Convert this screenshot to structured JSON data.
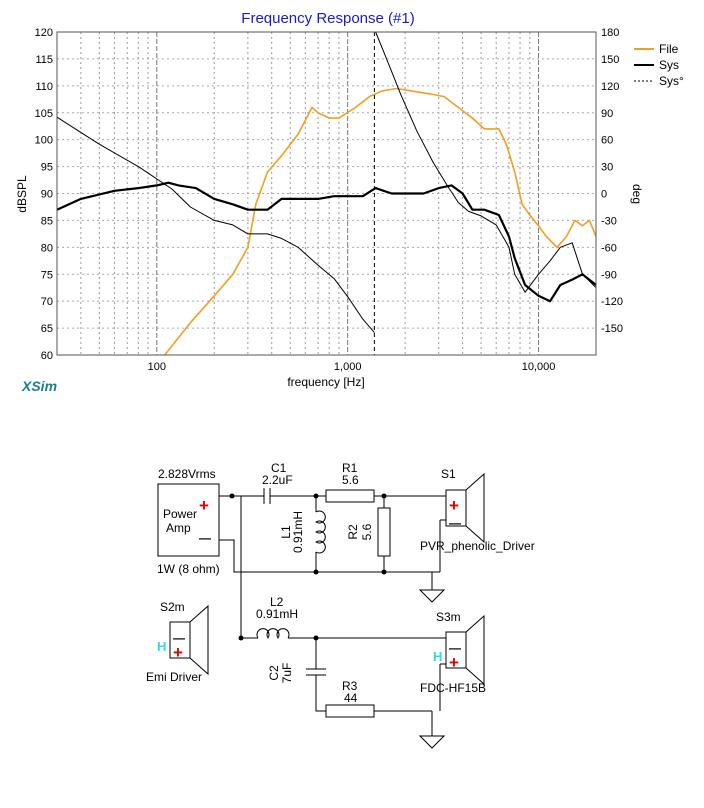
{
  "chart_data": {
    "type": "line",
    "title": "Frequency Response (#1)",
    "xlabel": "frequency [Hz]",
    "ylabel": "dBSPL",
    "y2label": "deg",
    "xscale": "log",
    "xlim": [
      30,
      20000
    ],
    "ylim": [
      60,
      120
    ],
    "y2lim": [
      -180,
      180
    ],
    "xticks": [
      100,
      1000,
      10000
    ],
    "xtick_labels": [
      "100",
      "1,000",
      "10,000"
    ],
    "yticks": [
      60,
      65,
      70,
      75,
      80,
      85,
      90,
      95,
      100,
      105,
      110,
      115,
      120
    ],
    "y2ticks": [
      -150,
      -120,
      -90,
      -60,
      -30,
      0,
      30,
      60,
      90,
      120,
      150,
      180
    ],
    "marker_x": 1380,
    "legend": [
      {
        "label": "File",
        "color": "#f0a020",
        "style": "solid"
      },
      {
        "label": "Sys",
        "color": "#000000",
        "style": "solid"
      },
      {
        "label": "Sys°",
        "color": "#000000",
        "style": "dashed"
      }
    ],
    "watermark": "XSim",
    "series": [
      {
        "name": "File",
        "axis": "left",
        "color": "#f0a020",
        "x": [
          110,
          150,
          200,
          250,
          300,
          330,
          380,
          450,
          550,
          650,
          700,
          800,
          900,
          1100,
          1300,
          1500,
          1800,
          2200,
          2700,
          3200,
          3800,
          4500,
          5200,
          6200,
          6800,
          7500,
          8200,
          9000,
          10000,
          11000,
          12500,
          14000,
          15500,
          17000,
          18500,
          20000
        ],
        "y": [
          60,
          66,
          71,
          75,
          80,
          88,
          94,
          97,
          101,
          106,
          105,
          104,
          104,
          106,
          108,
          109,
          109.5,
          109,
          108.5,
          108,
          106,
          104,
          102,
          102,
          99,
          94,
          88,
          86,
          84,
          82,
          80,
          82,
          85,
          84,
          85,
          82
        ]
      },
      {
        "name": "Sys",
        "axis": "left",
        "color": "#000000",
        "x": [
          30,
          40,
          60,
          80,
          100,
          115,
          130,
          160,
          200,
          250,
          300,
          380,
          450,
          550,
          700,
          850,
          1000,
          1200,
          1400,
          1700,
          2000,
          2500,
          3000,
          3500,
          4000,
          4500,
          5200,
          6200,
          7000,
          7500,
          8500,
          10000,
          11500,
          13000,
          15000,
          17000,
          20000
        ],
        "y": [
          87,
          89,
          90.5,
          91,
          91.5,
          92,
          91.5,
          91,
          89,
          88,
          87,
          87,
          89,
          89,
          89,
          89.5,
          89.5,
          89.5,
          91,
          90,
          90,
          90,
          91,
          91.5,
          90,
          87,
          87,
          86,
          82,
          78,
          73,
          71,
          70,
          73,
          74,
          75,
          73
        ]
      },
      {
        "name": "Sys°",
        "axis": "right",
        "color": "#000000",
        "x": [
          30,
          50,
          80,
          120,
          150,
          200,
          250,
          300,
          380,
          450,
          550,
          700,
          850,
          1000,
          1200,
          1380,
          1400,
          1600,
          1900,
          2300,
          2800,
          3300,
          3800,
          4300,
          5000,
          6000,
          7000,
          7500,
          8500,
          10000,
          11500,
          13000,
          15000,
          17000,
          20000
        ],
        "y": [
          85,
          55,
          30,
          5,
          -15,
          -30,
          -35,
          -45,
          -45,
          -50,
          -60,
          -80,
          -95,
          -115,
          -140,
          -155,
          180,
          150,
          110,
          70,
          35,
          10,
          -10,
          -20,
          -25,
          -35,
          -60,
          -90,
          -110,
          -90,
          -75,
          -60,
          -55,
          -90,
          -105
        ]
      }
    ]
  },
  "schematic": {
    "source_voltage": "2.828Vrms",
    "amp_label_1": "Power",
    "amp_label_2": "Amp",
    "amp_power": "1W (8 ohm)",
    "plus": "+",
    "minus": "—",
    "c1_name": "C1",
    "c1_value": "2.2uF",
    "r1_name": "R1",
    "r1_value": "5.6",
    "l1_name": "L1",
    "l1_value": "0.91mH",
    "r2_name": "R2",
    "r2_value": "5.6",
    "s1_name": "S1",
    "s1_driver": "PVR_phenolic_Driver",
    "l2_name": "L2",
    "l2_value": "0.91mH",
    "c2_name": "C2",
    "c2_value": "7uF",
    "r3_name": "R3",
    "r3_value": "44",
    "s3m_name": "S3m",
    "s3m_driver": "FDC-HF15B",
    "s2m_name": "S2m",
    "s2m_driver": "Emi Driver",
    "h_mark": "H"
  }
}
